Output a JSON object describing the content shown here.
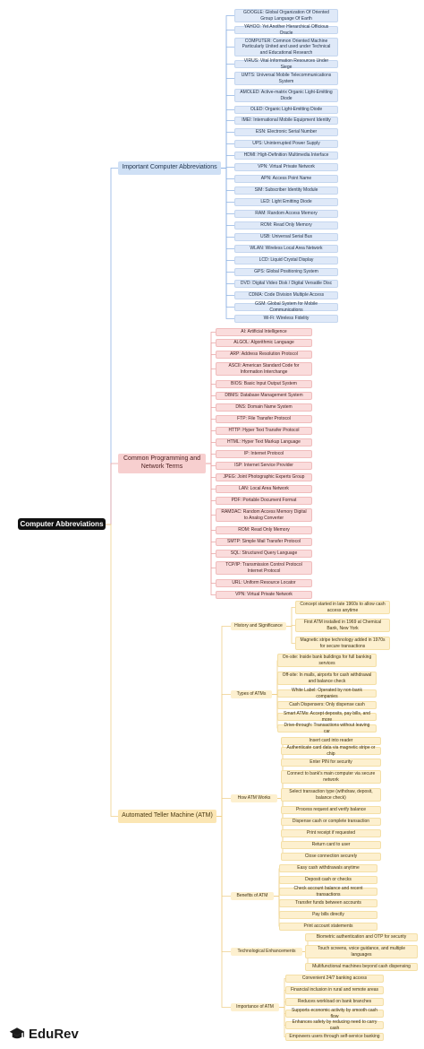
{
  "root": "Computer Abbreviations",
  "categories": [
    {
      "label": "Important Computer Abbreviations",
      "items": [
        "GOOGLE: Global Organization Of Oriented Group Language Of Earth",
        "YAHOO: Yet Another Hierarchical Officious Oracle",
        "COMPUTER: Common Oriented Machine Particularly United and used under Technical and Educational Research",
        "VIRUS: Vital Information Resources Under Siege",
        "UMTS: Universal Mobile Telecommunications System",
        "AMOLED: Active-matrix Organic Light-Emitting Diode",
        "OLED: Organic Light-Emitting Diode",
        "IMEI: International Mobile Equipment Identity",
        "ESN: Electronic Serial Number",
        "UPS: Uninterrupted Power Supply",
        "HDMI: High-Definition Multimedia Interface",
        "VPN: Virtual Private Network",
        "APN: Access Point Name",
        "SIM: Subscriber Identity Module",
        "LED: Light Emitting Diode",
        "RAM: Random Access Memory",
        "ROM: Read Only Memory",
        "USB: Universal Serial Bus",
        "WLAN: Wireless Local Area Network",
        "LCD: Liquid Crystal Display",
        "GPS: Global Positioning System",
        "DVD: Digital Video Disk / Digital Versatile Disc",
        "CDMA: Code Division Multiple Access",
        "GSM: Global System for Mobile Communications",
        "Wi-Fi: Wireless Fidelity"
      ]
    },
    {
      "label": "Common Programming and Network Terms",
      "items": [
        "AI: Artificial Intelligence",
        "ALGOL: Algorithmic Language",
        "ARP: Address Resolution Protocol",
        "ASCII: American Standard Code for Information Interchange",
        "BIOS: Basic Input Output System",
        "DBMS: Database Management System",
        "DNS: Domain Name System",
        "FTP: File Transfer Protocol",
        "HTTP: Hyper Text Transfer Protocol",
        "HTML: Hyper Text Markup Language",
        "IP: Internet Protocol",
        "ISP: Internet Service Provider",
        "JPEG: Joint Photographic Experts Group",
        "LAN: Local Area Network",
        "PDF: Portable Document Format",
        "RAMDAC: Random Access Memory Digital to Analog Converter",
        "ROM: Read Only Memory",
        "SMTP: Simple Mail Transfer Protocol",
        "SQL: Structured Query Language",
        "TCP/IP: Transmission Control Protocol Internet Protocol",
        "URL: Uniform Resource Locator",
        "VPN: Virtual Private Network"
      ]
    },
    {
      "label": "Automated Teller Machine (ATM)",
      "groups": [
        {
          "label": "History and Significance",
          "items": [
            "Concept started in late 1960s to allow cash access anytime",
            "First ATM installed in 1969 at Chemical Bank, New York",
            "Magnetic stripe technology added in 1970s for secure transactions"
          ]
        },
        {
          "label": "Types of ATMs",
          "items": [
            "On-site: Inside bank buildings for full banking services",
            "Off-site: In malls, airports for cash withdrawal and balance check",
            "White Label: Operated by non-bank companies",
            "Cash Dispensers: Only dispense cash",
            "Smart ATMs: Accept deposits, pay bills, and more",
            "Drive-through: Transactions without leaving car"
          ]
        },
        {
          "label": "How ATM Works",
          "items": [
            "Insert card into reader",
            "Authenticate card data via magnetic stripe or chip",
            "Enter PIN for security",
            "Connect to bank's main computer via secure network",
            "Select transaction type (withdraw, deposit, balance check)",
            "Process request and verify balance",
            "Dispense cash or complete transaction",
            "Print receipt if requested",
            "Return card to user",
            "Close connection securely"
          ]
        },
        {
          "label": "Benefits of ATM",
          "items": [
            "Easy cash withdrawals anytime",
            "Deposit cash or checks",
            "Check account balance and recent transactions",
            "Transfer funds between accounts",
            "Pay bills directly",
            "Print account statements"
          ]
        },
        {
          "label": "Technological Enhancements",
          "items": [
            "Biometric authentication and OTP for security",
            "Touch screens, voice guidance, and multiple languages",
            "Multifunctional machines beyond cash dispensing"
          ]
        },
        {
          "label": "Importance of ATM",
          "items": [
            "Convenient 24/7 banking access",
            "Financial inclusion in rural and remote areas",
            "Reduces workload on bank branches",
            "Supports economic activity by smooth cash flow",
            "Enhances safety by reducing need to carry cash",
            "Empowers users through self-service banking"
          ]
        }
      ]
    }
  ],
  "brand": "EduRev",
  "colors": {
    "blue_branch": "#8fb3e3",
    "red_branch": "#e9a3a3",
    "yellow_branch": "#efd08a"
  }
}
